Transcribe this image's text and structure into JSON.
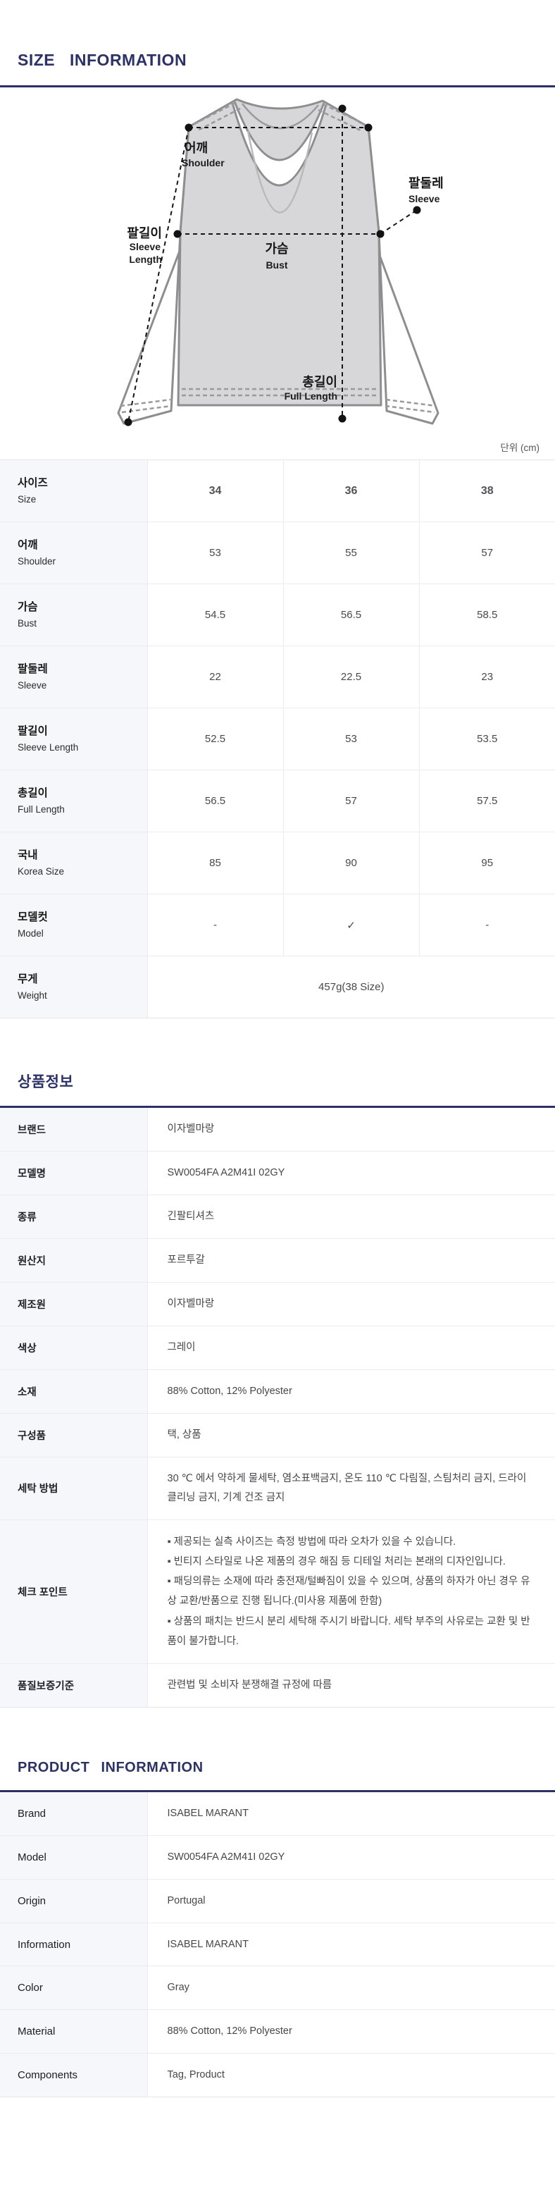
{
  "size_section": {
    "title": "SIZE INFORMATION",
    "unit_label": "단위 (cm)",
    "diagram": {
      "shoulder_ko": "어깨",
      "shoulder_en": "Shoulder",
      "sleeve_ko": "팔둘레",
      "sleeve_en": "Sleeve",
      "sleeve_length_ko": "팔길이",
      "sleeve_length_en_line1": "Sleeve",
      "sleeve_length_en_line2": "Length",
      "bust_ko": "가슴",
      "bust_en": "Bust",
      "full_length_ko": "총길이",
      "full_length_en": "Full Length"
    },
    "table": {
      "rows": [
        {
          "ko": "사이즈",
          "en": "Size",
          "header": true,
          "values": [
            "34",
            "36",
            "38"
          ]
        },
        {
          "ko": "어깨",
          "en": "Shoulder",
          "values": [
            "53",
            "55",
            "57"
          ]
        },
        {
          "ko": "가슴",
          "en": "Bust",
          "values": [
            "54.5",
            "56.5",
            "58.5"
          ]
        },
        {
          "ko": "팔둘레",
          "en": "Sleeve",
          "values": [
            "22",
            "22.5",
            "23"
          ]
        },
        {
          "ko": "팔길이",
          "en": "Sleeve Length",
          "values": [
            "52.5",
            "53",
            "53.5"
          ]
        },
        {
          "ko": "총길이",
          "en": "Full Length",
          "values": [
            "56.5",
            "57",
            "57.5"
          ]
        },
        {
          "ko": "국내",
          "en": "Korea Size",
          "values": [
            "85",
            "90",
            "95"
          ]
        },
        {
          "ko": "모델컷",
          "en": "Model",
          "values": [
            "-",
            "✓",
            "-"
          ]
        },
        {
          "ko": "무게",
          "en": "Weight",
          "span_value": "457g(38 Size)"
        }
      ]
    }
  },
  "product_info_kr": {
    "title": "상품정보",
    "rows": [
      {
        "label": "브랜드",
        "value": "이자벨마랑"
      },
      {
        "label": "모델명",
        "value": "SW0054FA A2M41I 02GY"
      },
      {
        "label": "종류",
        "value": "긴팔티셔츠"
      },
      {
        "label": "원산지",
        "value": "포르투갈"
      },
      {
        "label": "제조원",
        "value": "이자벨마랑"
      },
      {
        "label": "색상",
        "value": "그레이"
      },
      {
        "label": "소재",
        "value": "88% Cotton, 12% Polyester"
      },
      {
        "label": "구성품",
        "value": "택, 상품"
      },
      {
        "label": "세탁 방법",
        "value": "30 ℃ 에서 약하게 물세탁, 염소표백금지, 온도 110 ℃ 다림질, 스팀처리 금지, 드라이클리닝 금지, 기계 건조 금지"
      },
      {
        "label": "체크 포인트",
        "bullets": [
          "▪ 제공되는 실측 사이즈는 측정 방법에 따라 오차가 있을 수 있습니다.",
          "▪ 빈티지 스타일로 나온 제품의 경우 해짐 등 디테일 처리는 본래의 디자인입니다.",
          "▪ 패딩의류는 소재에 따라 충전재/털빠짐이 있을 수 있으며, 상품의 하자가 아닌 경우 유상 교환/반품으로 진행 됩니다.(미사용 제품에 한함)",
          "▪ 상품의 패치는 반드시 분리 세탁해 주시기 바랍니다. 세탁 부주의 사유로는 교환 및 반품이 불가합니다."
        ]
      },
      {
        "label": "품질보증기준",
        "value": "관련법 및 소비자 분쟁해결 규정에 따름"
      }
    ]
  },
  "product_info_en": {
    "title": "PRODUCT INFORMATION",
    "rows": [
      {
        "label": "Brand",
        "value": "ISABEL MARANT"
      },
      {
        "label": "Model",
        "value": "SW0054FA A2M41I 02GY"
      },
      {
        "label": "Origin",
        "value": "Portugal"
      },
      {
        "label": "Information",
        "value": "ISABEL MARANT"
      },
      {
        "label": "Color",
        "value": "Gray"
      },
      {
        "label": "Material",
        "value": "88% Cotton, 12% Polyester"
      },
      {
        "label": "Components",
        "value": "Tag, Product"
      }
    ]
  }
}
